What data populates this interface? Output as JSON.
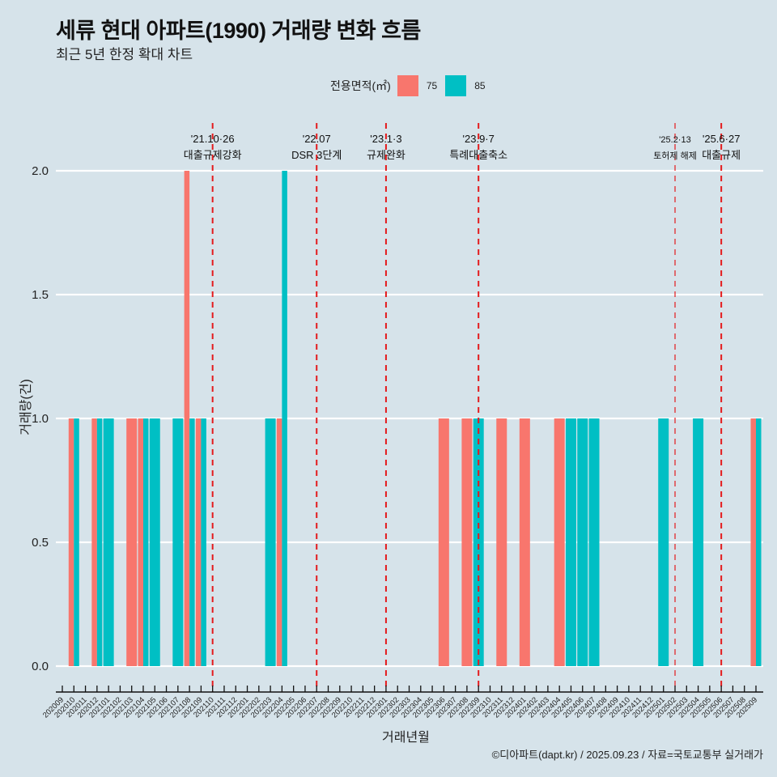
{
  "header": {
    "title": "세류 현대 아파트(1990) 거래량 변화 흐름",
    "subtitle": "최근 5년 한정 확대 차트"
  },
  "legend": {
    "title": "전용면적(㎡)",
    "items": [
      {
        "label": "75",
        "color": "#F8766D"
      },
      {
        "label": "85",
        "color": "#00BFC4"
      }
    ]
  },
  "caption": "©디아파트(dapt.kr) / 2025.09.23 / 자료=국토교통부 실거래가",
  "chart_data": {
    "type": "bar",
    "title": "세류 현대 아파트(1990) 거래량 변화 흐름",
    "subtitle": "최근 5년 한정 확대 차트",
    "xlabel": "거래년월",
    "ylabel": "거래량(건)",
    "ylim": [
      0,
      2
    ],
    "yticks": [
      "0.0",
      "0.5",
      "1.0",
      "1.5",
      "2.0"
    ],
    "ytick_values": [
      0,
      0.5,
      1.0,
      1.5,
      2.0
    ],
    "grid": "horizontal-major",
    "legend_position": "top",
    "categories": [
      "202009",
      "202010",
      "202011",
      "202012",
      "202101",
      "202102",
      "202103",
      "202104",
      "202105",
      "202106",
      "202107",
      "202108",
      "202109",
      "202110",
      "202111",
      "202112",
      "202201",
      "202202",
      "202203",
      "202204",
      "202205",
      "202206",
      "202207",
      "202208",
      "202209",
      "202210",
      "202211",
      "202212",
      "202301",
      "202302",
      "202303",
      "202304",
      "202305",
      "202306",
      "202307",
      "202308",
      "202309",
      "202310",
      "202311",
      "202312",
      "202401",
      "202402",
      "202403",
      "202404",
      "202405",
      "202406",
      "202407",
      "202408",
      "202409",
      "202410",
      "202411",
      "202412",
      "202501",
      "202502",
      "202503",
      "202504",
      "202505",
      "202506",
      "202507",
      "202508",
      "202509"
    ],
    "series": [
      {
        "name": "75",
        "color": "#F8766D",
        "values": [
          0,
          1,
          0,
          1,
          0,
          0,
          1,
          1,
          0,
          0,
          0,
          2,
          1,
          0,
          0,
          0,
          0,
          0,
          0,
          1,
          0,
          0,
          0,
          0,
          0,
          0,
          0,
          0,
          0,
          0,
          0,
          0,
          0,
          1,
          0,
          1,
          0,
          0,
          1,
          0,
          1,
          0,
          0,
          1,
          0,
          0,
          0,
          0,
          0,
          0,
          0,
          0,
          0,
          0,
          0,
          0,
          0,
          0,
          0,
          0,
          1
        ]
      },
      {
        "name": "85",
        "color": "#00BFC4",
        "values": [
          0,
          1,
          0,
          1,
          1,
          0,
          0,
          1,
          1,
          0,
          1,
          1,
          1,
          0,
          0,
          0,
          0,
          0,
          1,
          2,
          0,
          0,
          0,
          0,
          0,
          0,
          0,
          0,
          0,
          0,
          0,
          0,
          0,
          0,
          0,
          0,
          1,
          0,
          0,
          0,
          0,
          0,
          0,
          0,
          1,
          1,
          1,
          0,
          0,
          0,
          0,
          0,
          1,
          0,
          0,
          1,
          0,
          0,
          0,
          0,
          1
        ]
      }
    ],
    "annotations": [
      {
        "month": "202110",
        "date": "'21.10·26",
        "text": "대출규제강화",
        "line_style": "dashed-thick"
      },
      {
        "month": "202207",
        "date": "'22.07",
        "text": "DSR 3단계",
        "line_style": "dashed-thick"
      },
      {
        "month": "202301",
        "date": "'23.1·3",
        "text": "규제완화",
        "line_style": "dashed-thick"
      },
      {
        "month": "202309",
        "date": "'23.9·7",
        "text": "특례대출축소",
        "line_style": "dashed-thick"
      },
      {
        "month": "202502",
        "date": "'25.2·13",
        "text": "토허제 해제",
        "line_style": "dashed-thin"
      },
      {
        "month": "202506",
        "date": "'25.6·27",
        "text": "대출규제",
        "line_style": "dashed-thick"
      }
    ],
    "annotation_color": "#E41A1C"
  }
}
